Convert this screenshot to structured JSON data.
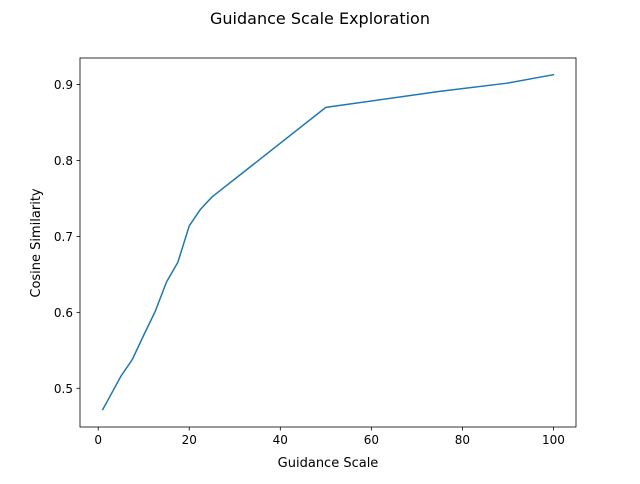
{
  "chart_data": {
    "type": "line",
    "title": "Guidance Scale Exploration",
    "xlabel": "Guidance Scale",
    "ylabel": "Cosine Similarity",
    "xlim": [
      -4.0,
      104.95
    ],
    "ylim": [
      0.449,
      0.935
    ],
    "xticks": [
      0,
      20,
      40,
      60,
      80,
      100
    ],
    "yticks": [
      0.5,
      0.6,
      0.7,
      0.8,
      0.9
    ],
    "xtick_labels": [
      "0",
      "20",
      "40",
      "60",
      "80",
      "100"
    ],
    "ytick_labels": [
      "0.5",
      "0.6",
      "0.7",
      "0.8",
      "0.9"
    ],
    "grid": false,
    "series": [
      {
        "color": "#1f77b4",
        "x": [
          1,
          2,
          5,
          7.5,
          10,
          12.5,
          15,
          17.5,
          20,
          22.5,
          25,
          50,
          75,
          90,
          100
        ],
        "y": [
          0.472,
          0.483,
          0.516,
          0.538,
          0.57,
          0.601,
          0.64,
          0.666,
          0.714,
          0.736,
          0.752,
          0.87,
          0.891,
          0.902,
          0.913
        ]
      }
    ]
  }
}
